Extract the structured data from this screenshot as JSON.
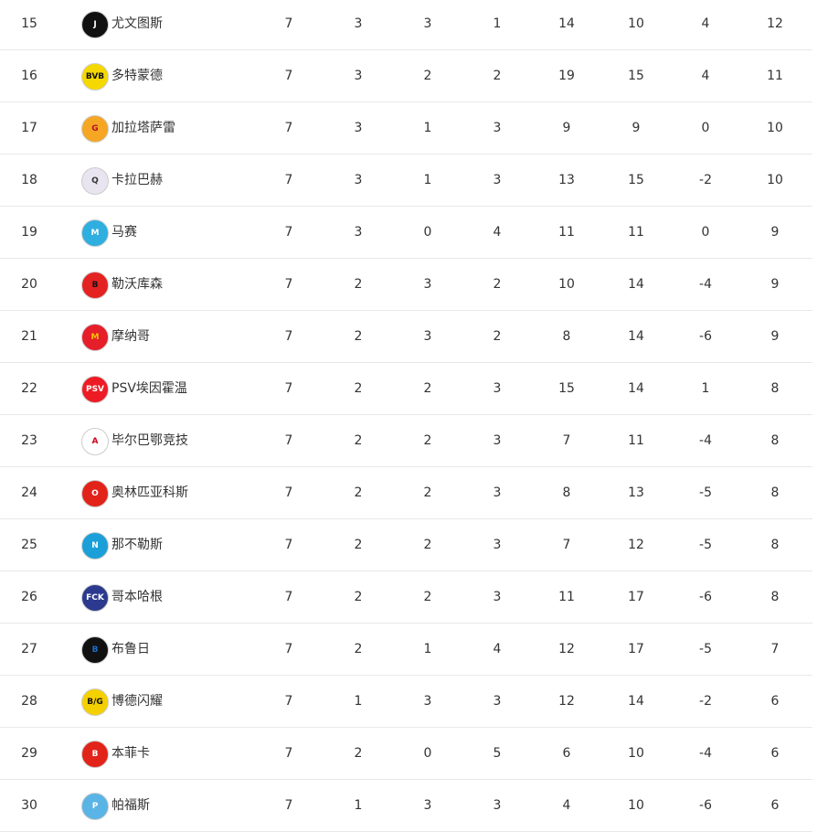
{
  "standings": [
    {
      "rank": "15",
      "team": "尤文图斯",
      "logo": "juventus-logo",
      "color": "#111111",
      "fg": "#ffffff",
      "mark": "J",
      "stats": [
        "7",
        "3",
        "3",
        "1",
        "14",
        "10",
        "4",
        "12"
      ]
    },
    {
      "rank": "16",
      "team": "多特蒙德",
      "logo": "dortmund-logo",
      "color": "#f5d800",
      "fg": "#111111",
      "mark": "BVB",
      "stats": [
        "7",
        "3",
        "2",
        "2",
        "19",
        "15",
        "4",
        "11"
      ]
    },
    {
      "rank": "17",
      "team": "加拉塔萨雷",
      "logo": "galatasaray-logo",
      "color": "#f5a623",
      "fg": "#b0102a",
      "mark": "G",
      "stats": [
        "7",
        "3",
        "1",
        "3",
        "9",
        "9",
        "0",
        "10"
      ]
    },
    {
      "rank": "18",
      "team": "卡拉巴赫",
      "logo": "qarabag-logo",
      "color": "#e8e4f0",
      "fg": "#333333",
      "mark": "Q",
      "stats": [
        "7",
        "3",
        "1",
        "3",
        "13",
        "15",
        "-2",
        "10"
      ]
    },
    {
      "rank": "19",
      "team": "马赛",
      "logo": "marseille-logo",
      "color": "#2faee0",
      "fg": "#ffffff",
      "mark": "M",
      "stats": [
        "7",
        "3",
        "0",
        "4",
        "11",
        "11",
        "0",
        "9"
      ]
    },
    {
      "rank": "20",
      "team": "勒沃库森",
      "logo": "leverkusen-logo",
      "color": "#e32221",
      "fg": "#111111",
      "mark": "B",
      "stats": [
        "7",
        "2",
        "3",
        "2",
        "10",
        "14",
        "-4",
        "9"
      ]
    },
    {
      "rank": "21",
      "team": "摩纳哥",
      "logo": "monaco-logo",
      "color": "#e51e2a",
      "fg": "#f5c400",
      "mark": "M",
      "stats": [
        "7",
        "2",
        "3",
        "2",
        "8",
        "14",
        "-6",
        "9"
      ]
    },
    {
      "rank": "22",
      "team": "PSV埃因霍温",
      "logo": "psv-logo",
      "color": "#ed1c24",
      "fg": "#ffffff",
      "mark": "PSV",
      "stats": [
        "7",
        "2",
        "2",
        "3",
        "15",
        "14",
        "1",
        "8"
      ]
    },
    {
      "rank": "23",
      "team": "毕尔巴鄂竞技",
      "logo": "athletic-logo",
      "color": "#ffffff",
      "fg": "#d0021b",
      "mark": "A",
      "stats": [
        "7",
        "2",
        "2",
        "3",
        "7",
        "11",
        "-4",
        "8"
      ]
    },
    {
      "rank": "24",
      "team": "奥林匹亚科斯",
      "logo": "olympiacos-logo",
      "color": "#e2231a",
      "fg": "#ffffff",
      "mark": "O",
      "stats": [
        "7",
        "2",
        "2",
        "3",
        "8",
        "13",
        "-5",
        "8"
      ]
    },
    {
      "rank": "25",
      "team": "那不勒斯",
      "logo": "napoli-logo",
      "color": "#1b9fd8",
      "fg": "#ffffff",
      "mark": "N",
      "stats": [
        "7",
        "2",
        "2",
        "3",
        "7",
        "12",
        "-5",
        "8"
      ]
    },
    {
      "rank": "26",
      "team": "哥本哈根",
      "logo": "copenhagen-logo",
      "color": "#2b3a8f",
      "fg": "#ffffff",
      "mark": "FCK",
      "stats": [
        "7",
        "2",
        "2",
        "3",
        "11",
        "17",
        "-6",
        "8"
      ]
    },
    {
      "rank": "27",
      "team": "布鲁日",
      "logo": "brugge-logo",
      "color": "#111111",
      "fg": "#1a6fc9",
      "mark": "B",
      "stats": [
        "7",
        "2",
        "1",
        "4",
        "12",
        "17",
        "-5",
        "7"
      ]
    },
    {
      "rank": "28",
      "team": "博德闪耀",
      "logo": "bodo-glimt-logo",
      "color": "#f5d000",
      "fg": "#111111",
      "mark": "B/G",
      "stats": [
        "7",
        "1",
        "3",
        "3",
        "12",
        "14",
        "-2",
        "6"
      ]
    },
    {
      "rank": "29",
      "team": "本菲卡",
      "logo": "benfica-logo",
      "color": "#e2231a",
      "fg": "#ffffff",
      "mark": "B",
      "stats": [
        "7",
        "2",
        "0",
        "5",
        "6",
        "10",
        "-4",
        "6"
      ]
    },
    {
      "rank": "30",
      "team": "帕福斯",
      "logo": "pafos-logo",
      "color": "#5ab4e5",
      "fg": "#ffffff",
      "mark": "P",
      "stats": [
        "7",
        "1",
        "3",
        "3",
        "4",
        "10",
        "-6",
        "6"
      ]
    }
  ]
}
